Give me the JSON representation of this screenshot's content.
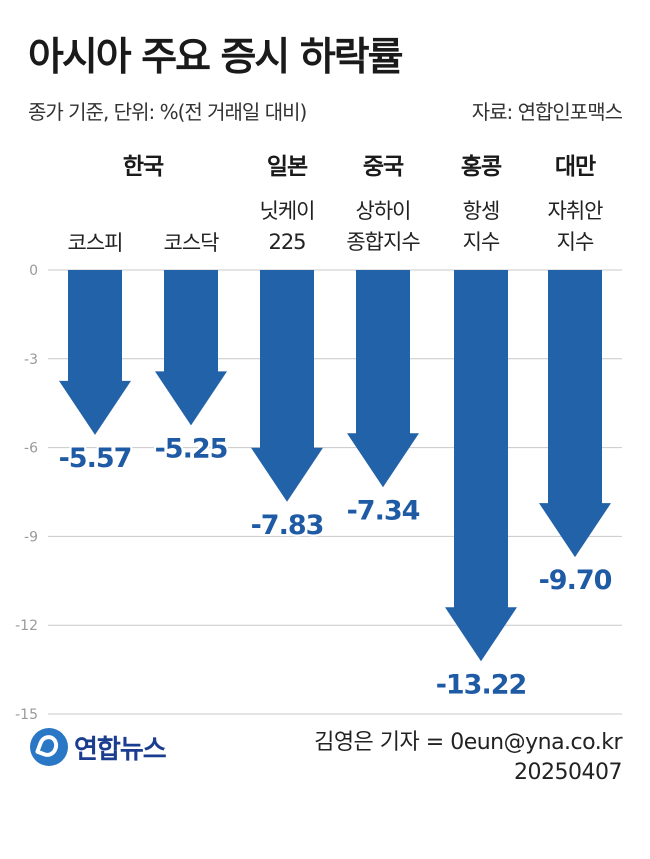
{
  "title": "아시아 주요 증시 하락률",
  "subtitle": "종가 기준, 단위: %(전 거래일 대비)",
  "source": "자료: 연합인포맥스",
  "logo_text": "연합뉴스",
  "credit": {
    "reporter": "김영은 기자 = 0eun@yna.co.kr",
    "date": "20250407"
  },
  "colors": {
    "arrow": "#2262a8",
    "value_label": "#1f5aa5",
    "grid": "#c8c8c8",
    "tick": "#9a9a9a"
  },
  "chart_data": {
    "type": "bar",
    "ylim": [
      -15,
      0
    ],
    "yticks": [
      0,
      -3,
      -6,
      -9,
      -12,
      -15
    ],
    "ytick_labels": [
      "0",
      "-3",
      "-6",
      "-9",
      "-12",
      "-15"
    ],
    "groups": [
      {
        "label": "한국",
        "members": [
          0,
          1
        ]
      },
      {
        "label": "일본",
        "members": [
          2
        ]
      },
      {
        "label": "중국",
        "members": [
          3
        ]
      },
      {
        "label": "홍콩",
        "members": [
          4
        ]
      },
      {
        "label": "대만",
        "members": [
          5
        ]
      }
    ],
    "categories": [
      [
        "코스피"
      ],
      [
        "코스닥"
      ],
      [
        "닛케이",
        "225"
      ],
      [
        "상하이",
        "종합지수"
      ],
      [
        "항셍",
        "지수"
      ],
      [
        "자취안",
        "지수"
      ]
    ],
    "values": [
      -5.57,
      -5.25,
      -7.83,
      -7.34,
      -13.22,
      -9.7
    ],
    "value_labels": [
      "-5.57",
      "-5.25",
      "-7.83",
      "-7.34",
      "-13.22",
      "-9.70"
    ]
  }
}
